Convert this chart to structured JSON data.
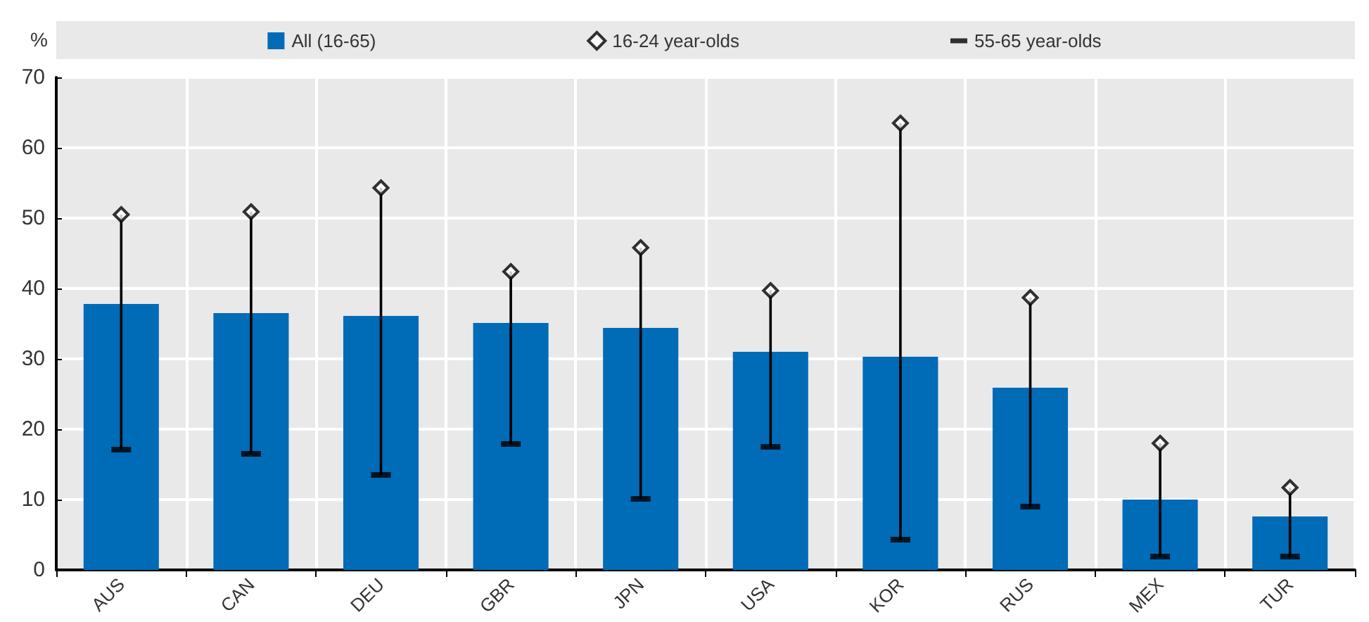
{
  "chart_data": {
    "type": "bar",
    "ylabel": "%",
    "categories": [
      "AUS",
      "CAN",
      "DEU",
      "GBR",
      "JPN",
      "USA",
      "KOR",
      "RUS",
      "MEX",
      "TUR"
    ],
    "series": [
      {
        "name": "All (16-65)",
        "color": "#006bb6",
        "values": [
          37.8,
          36.5,
          36.1,
          35.1,
          34.4,
          31.0,
          30.3,
          25.9,
          10.0,
          7.6
        ]
      },
      {
        "type": "line",
        "color": "#000000",
        "marker": "none",
        "x": [
          "AUS",
          "AUS",
          "AUS",
          "CAN",
          "CAN",
          "CAN",
          "DEU",
          "DEU",
          "DEU",
          "GBR",
          "GBR",
          "GBR",
          "JPN",
          "JPN",
          "JPN",
          "USA",
          "USA",
          "USA",
          "KOR",
          "KOR",
          "KOR",
          "RUS",
          "RUS",
          "RUS",
          "MEX",
          "MEX",
          "MEX",
          "TUR",
          "TUR"
        ],
        "values": [
          17.1,
          50.5,
          null,
          16.5,
          50.9,
          null,
          13.5,
          54.3,
          null,
          17.9,
          42.4,
          null,
          10.1,
          45.8,
          null,
          17.5,
          39.7,
          null,
          4.3,
          63.5,
          null,
          9.0,
          38.7,
          null,
          1.9,
          18.0,
          null,
          1.9,
          11.7
        ]
      },
      {
        "name": "16-24 year-olds",
        "type": "scatter",
        "marker": "diamond",
        "color": "#000000",
        "values": [
          50.5,
          50.9,
          54.3,
          42.4,
          45.8,
          39.7,
          63.5,
          38.7,
          18.0,
          11.7
        ]
      },
      {
        "name": "55-65 year-olds",
        "type": "scatter",
        "color": "#000000",
        "values": [
          17.1,
          16.5,
          13.5,
          17.9,
          10.1,
          17.5,
          4.3,
          9.0,
          1.9,
          1.9
        ]
      }
    ],
    "ylim": [
      0,
      70
    ],
    "yticks": [
      0,
      10,
      20,
      30,
      40,
      50,
      60,
      70
    ],
    "grid": true,
    "legend": "top"
  }
}
